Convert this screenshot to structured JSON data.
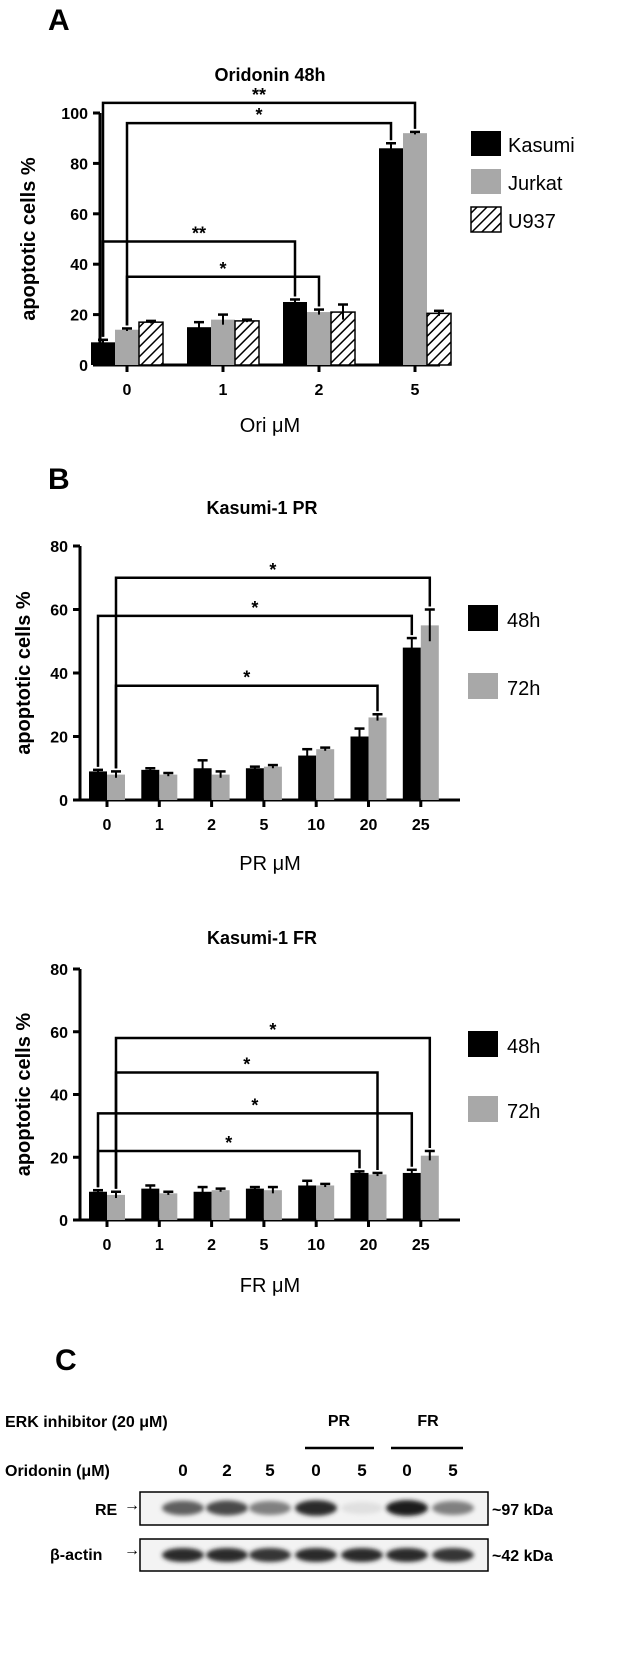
{
  "panels": {
    "a": "A",
    "b": "B",
    "c": "C"
  },
  "colors": {
    "black": "#000000",
    "grey": "#a8a8a8",
    "white": "#ffffff"
  },
  "chart_data": [
    {
      "id": "oridonin",
      "type": "bar",
      "title": "Oridonin 48h",
      "ylabel": "apoptotic cells %",
      "xlabel": "Ori μM",
      "categories": [
        "0",
        "1",
        "2",
        "5"
      ],
      "ylim": [
        0,
        100
      ],
      "yticks": [
        "0",
        "20",
        "40",
        "60",
        "80",
        "100"
      ],
      "legend": "right",
      "series": [
        {
          "name": "Kasumi",
          "fill": "black",
          "values": [
            9,
            15,
            25,
            86
          ],
          "errors": [
            1,
            2,
            1,
            2
          ]
        },
        {
          "name": "Jurkat",
          "fill": "grey",
          "values": [
            14,
            18,
            21,
            92
          ],
          "errors": [
            0.5,
            2,
            1,
            0.5
          ]
        },
        {
          "name": "U937",
          "fill": "hatch",
          "values": [
            17,
            17.5,
            21,
            20.5
          ],
          "errors": [
            0.5,
            0.5,
            3,
            1
          ]
        }
      ],
      "brackets": [
        {
          "from": [
            0,
            0
          ],
          "to": [
            3,
            1
          ],
          "y": 104,
          "star": "**"
        },
        {
          "from": [
            0,
            1
          ],
          "to": [
            3,
            0
          ],
          "y": 96,
          "star": "*"
        },
        {
          "from": [
            0,
            0
          ],
          "to": [
            2,
            0
          ],
          "y": 49,
          "star": "**"
        },
        {
          "from": [
            0,
            1
          ],
          "to": [
            2,
            1
          ],
          "y": 35,
          "star": "*"
        }
      ]
    },
    {
      "id": "pr",
      "type": "bar",
      "title": "Kasumi-1 PR",
      "ylabel": "apoptotic cells %",
      "xlabel": "PR μM",
      "categories": [
        "0",
        "1",
        "2",
        "5",
        "10",
        "20",
        "25"
      ],
      "ylim": [
        0,
        80
      ],
      "yticks": [
        "0",
        "20",
        "40",
        "60",
        "80"
      ],
      "legend": "right",
      "series": [
        {
          "name": "48h",
          "fill": "black",
          "values": [
            9,
            9.5,
            10,
            10,
            14,
            20,
            48
          ],
          "errors": [
            0.5,
            0.5,
            2.5,
            0.5,
            2,
            2.5,
            3
          ]
        },
        {
          "name": "72h",
          "fill": "grey",
          "values": [
            8,
            8,
            8,
            10.5,
            16,
            26,
            55
          ],
          "errors": [
            1,
            0.5,
            1,
            0.5,
            0.5,
            1,
            5
          ]
        }
      ],
      "brackets": [
        {
          "from": [
            0,
            1
          ],
          "to": [
            6,
            1
          ],
          "y": 70,
          "star": "*"
        },
        {
          "from": [
            0,
            0
          ],
          "to": [
            6,
            0
          ],
          "y": 58,
          "star": "*"
        },
        {
          "from": [
            0,
            1
          ],
          "to": [
            5,
            1
          ],
          "y": 36,
          "star": "*"
        }
      ]
    },
    {
      "id": "fr",
      "type": "bar",
      "title": "Kasumi-1 FR",
      "ylabel": "apoptotic cells %",
      "xlabel": "FR μM",
      "categories": [
        "0",
        "1",
        "2",
        "5",
        "10",
        "20",
        "25"
      ],
      "ylim": [
        0,
        80
      ],
      "yticks": [
        "0",
        "20",
        "40",
        "60",
        "80"
      ],
      "legend": "right",
      "series": [
        {
          "name": "48h",
          "fill": "black",
          "values": [
            9,
            10,
            9,
            10,
            11,
            15,
            15
          ],
          "errors": [
            0.5,
            1,
            1.5,
            0.5,
            1.5,
            0.5,
            1
          ]
        },
        {
          "name": "72h",
          "fill": "grey",
          "values": [
            8,
            8.5,
            9.5,
            9.5,
            11,
            14.5,
            20.5
          ],
          "errors": [
            1,
            0.5,
            0.5,
            1,
            0.5,
            0.5,
            1.5
          ]
        }
      ],
      "brackets": [
        {
          "from": [
            0,
            1
          ],
          "to": [
            6,
            1
          ],
          "y": 58,
          "star": "*"
        },
        {
          "from": [
            0,
            1
          ],
          "to": [
            5,
            1
          ],
          "y": 47,
          "star": "*"
        },
        {
          "from": [
            0,
            0
          ],
          "to": [
            6,
            0
          ],
          "y": 34,
          "star": "*"
        },
        {
          "from": [
            0,
            0
          ],
          "to": [
            5,
            0
          ],
          "y": 22,
          "star": "*"
        }
      ]
    }
  ],
  "western_blot": {
    "inhibitor_label": "ERK inhibitor (20 μM)",
    "oridonin_label": "Oridonin (μM)",
    "groups": [
      {
        "label": "PR"
      },
      {
        "label": "FR"
      }
    ],
    "lanes": [
      "0",
      "2",
      "5",
      "0",
      "5",
      "0",
      "5"
    ],
    "rows": [
      {
        "label": "RE",
        "size": "~97 kDa",
        "intensities": [
          0.65,
          0.75,
          0.5,
          0.9,
          0.05,
          0.95,
          0.5
        ]
      },
      {
        "label": "β-actin",
        "size": "~42 kDa",
        "intensities": [
          0.9,
          0.9,
          0.85,
          0.9,
          0.9,
          0.9,
          0.85
        ]
      }
    ]
  }
}
